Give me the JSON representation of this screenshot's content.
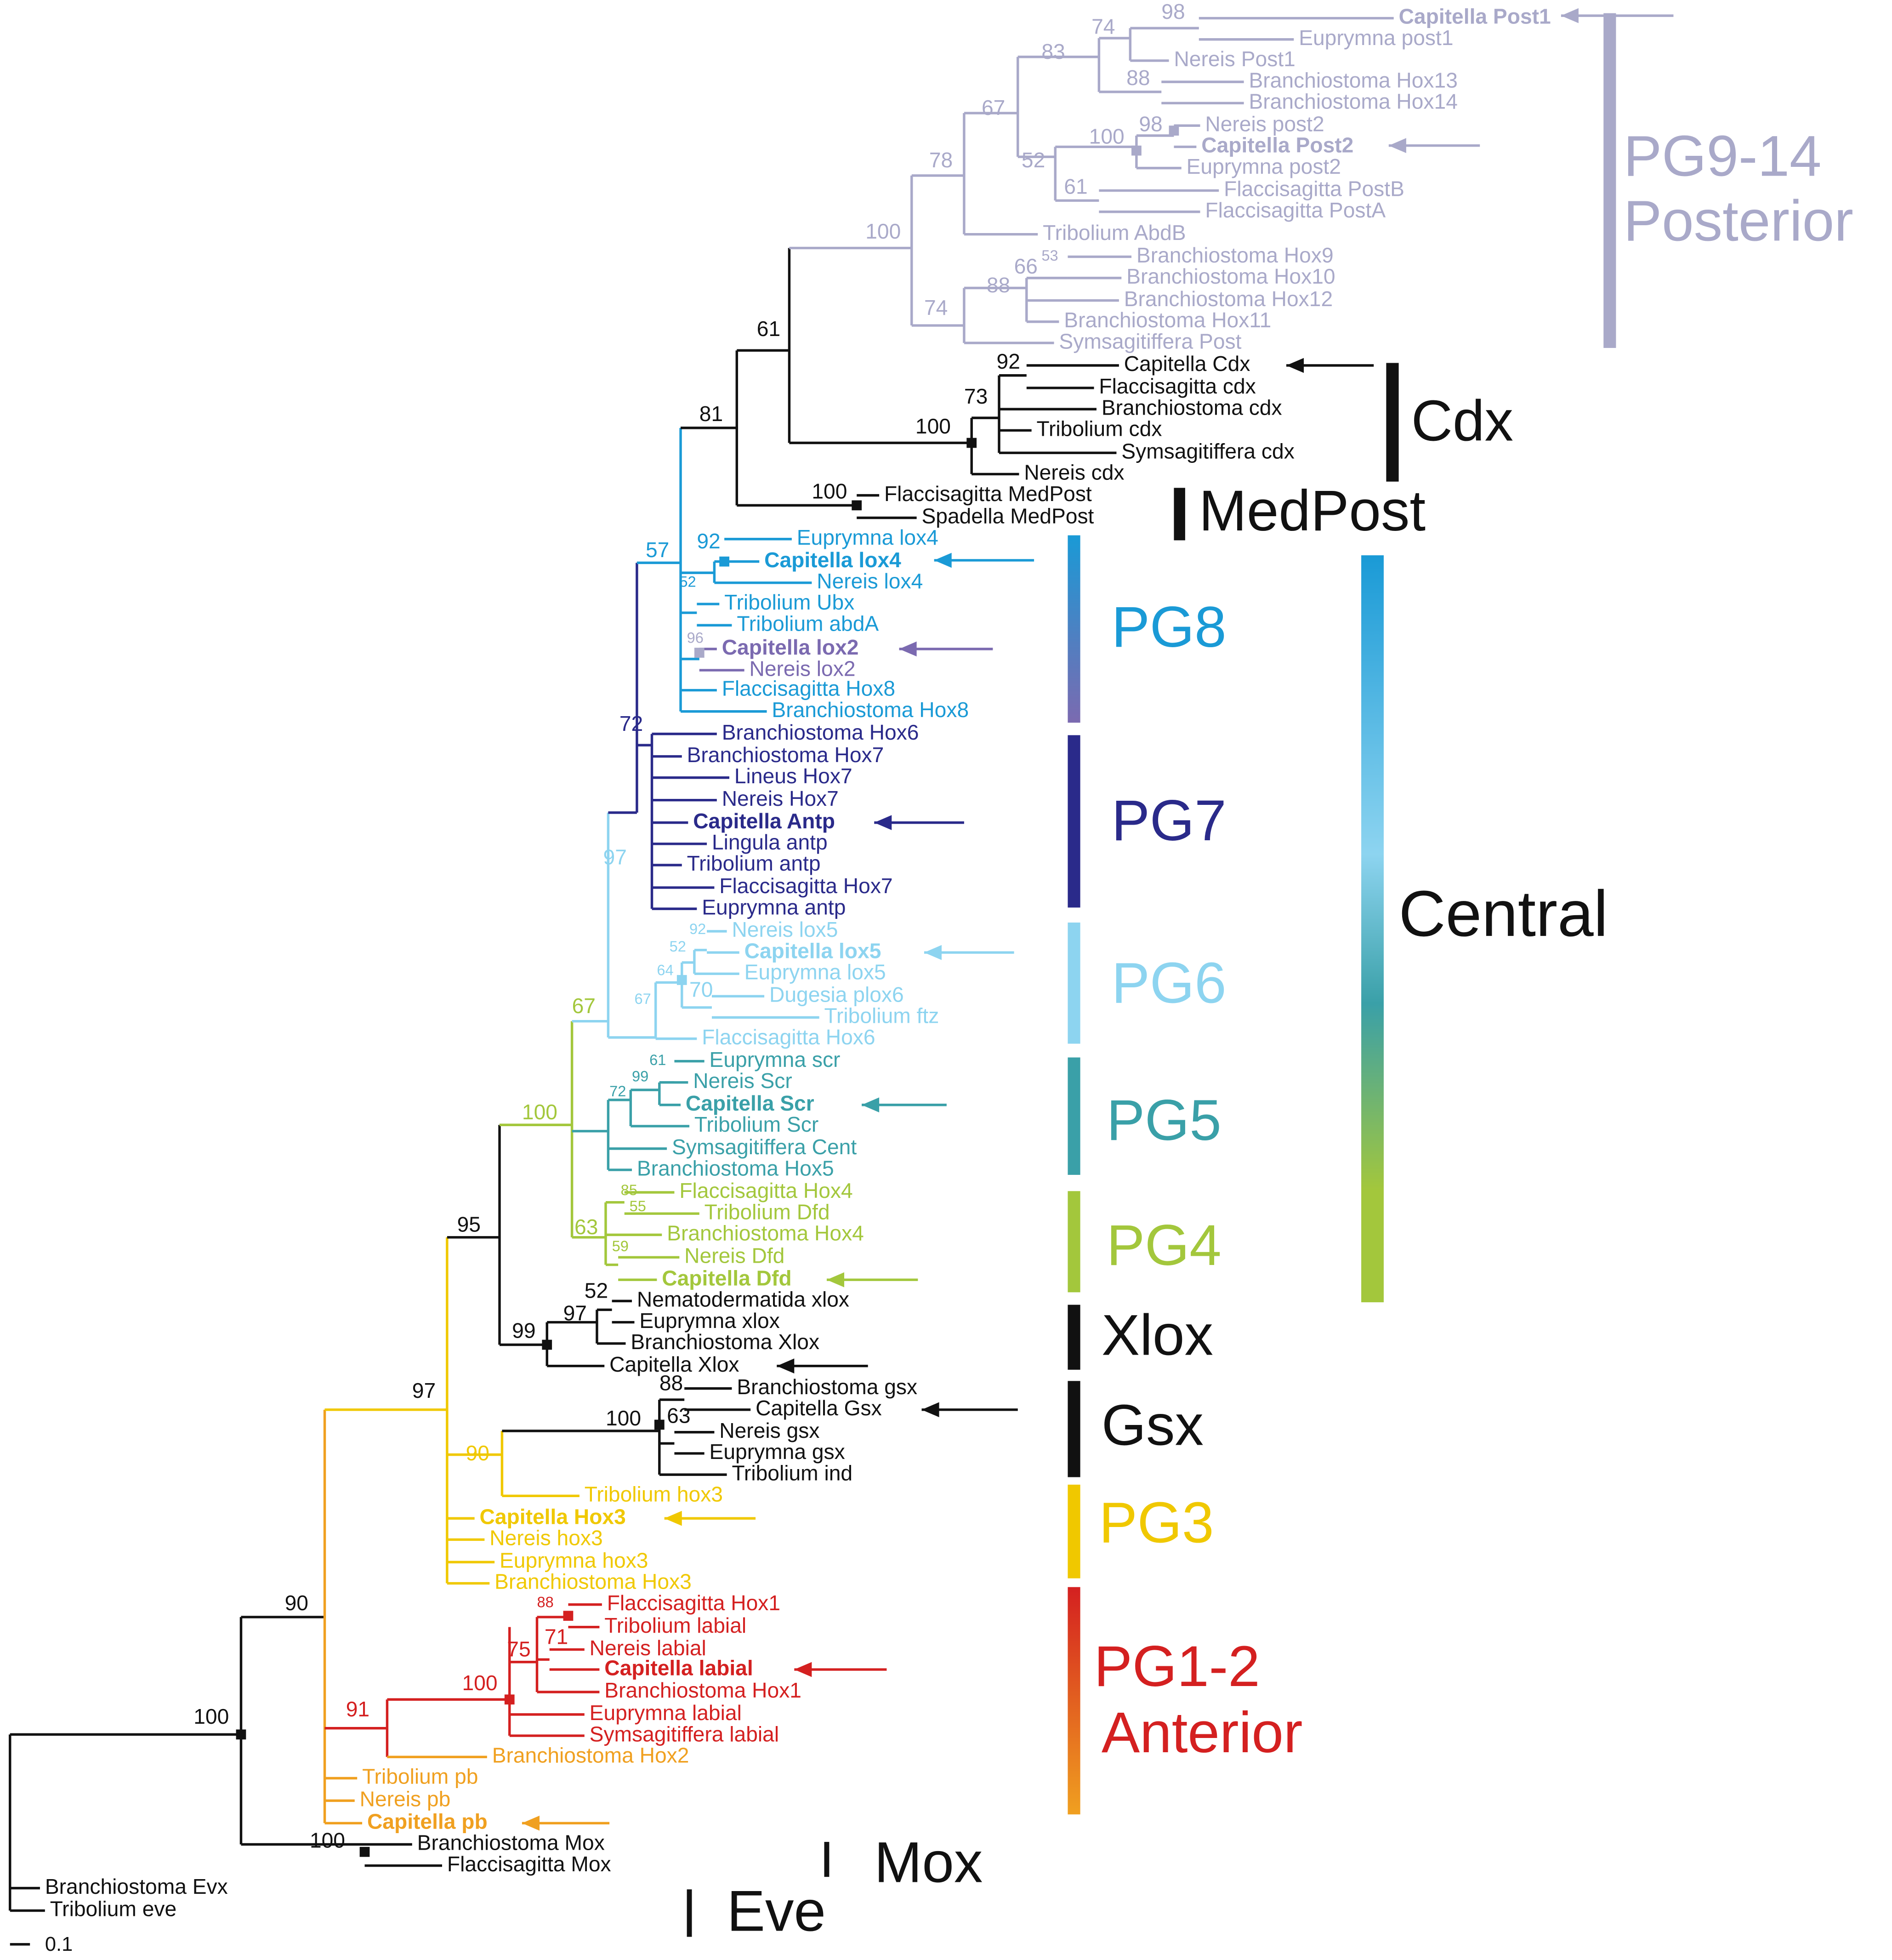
{
  "leaves": [
    {
      "label": "Capitella Post1",
      "color": "#a9a9c9",
      "bold": true
    },
    {
      "label": "Euprymna post1",
      "color": "#a9a9c9"
    },
    {
      "label": "Nereis Post1",
      "color": "#a9a9c9"
    },
    {
      "label": "Branchiostoma Hox13",
      "color": "#a9a9c9"
    },
    {
      "label": "Branchiostoma Hox14",
      "color": "#a9a9c9"
    },
    {
      "label": "Nereis post2",
      "color": "#a9a9c9"
    },
    {
      "label": "Capitella Post2",
      "color": "#a9a9c9",
      "bold": true
    },
    {
      "label": "Euprymna post2",
      "color": "#a9a9c9"
    },
    {
      "label": "Flaccisagitta PostB",
      "color": "#a9a9c9"
    },
    {
      "label": "Flaccisagitta PostA",
      "color": "#a9a9c9"
    },
    {
      "label": "Tribolium AbdB",
      "color": "#a9a9c9"
    },
    {
      "label": "Branchiostoma Hox9",
      "color": "#a9a9c9"
    },
    {
      "label": "Branchiostoma Hox10",
      "color": "#a9a9c9"
    },
    {
      "label": "Branchiostoma  Hox12",
      "color": "#a9a9c9"
    },
    {
      "label": "Branchiostoma  Hox11",
      "color": "#a9a9c9"
    },
    {
      "label": "Symsagitiffera Post",
      "color": "#a9a9c9"
    },
    {
      "label": "Capitella Cdx",
      "color": "#111111"
    },
    {
      "label": "Flaccisagitta cdx",
      "color": "#111111"
    },
    {
      "label": "Branchiostoma  cdx",
      "color": "#111111"
    },
    {
      "label": "Tribolium cdx",
      "color": "#111111"
    },
    {
      "label": "Symsagitiffera cdx",
      "color": "#111111"
    },
    {
      "label": "Nereis cdx",
      "color": "#111111"
    },
    {
      "label": "Flaccisagitta  MedPost",
      "color": "#111111"
    },
    {
      "label": "Spadella  MedPost",
      "color": "#111111"
    },
    {
      "label": "Euprymna lox4",
      "color": "#1a9ad6"
    },
    {
      "label": "Capitella lox4",
      "color": "#1a9ad6",
      "bold": true
    },
    {
      "label": "Nereis lox4",
      "color": "#1a9ad6"
    },
    {
      "label": "Tribolium Ubx",
      "color": "#1a9ad6"
    },
    {
      "label": "Tribolium abdA",
      "color": "#1a9ad6"
    },
    {
      "label": "Capitella lox2",
      "color": "#7b6ab0",
      "bold": true
    },
    {
      "label": "Nereis lox2",
      "color": "#7b6ab0"
    },
    {
      "label": "Flaccisagitta Hox8",
      "color": "#1a9ad6"
    },
    {
      "label": "Branchiostoma Hox8",
      "color": "#1a9ad6"
    },
    {
      "label": "Branchiostoma Hox6",
      "color": "#2a2a8a"
    },
    {
      "label": "Branchiostoma Hox7",
      "color": "#2a2a8a"
    },
    {
      "label": "Lineus Hox7",
      "color": "#2a2a8a"
    },
    {
      "label": "Nereis Hox7",
      "color": "#2a2a8a"
    },
    {
      "label": "Capitella Antp",
      "color": "#2a2a8a",
      "bold": true
    },
    {
      "label": "Lingula antp",
      "color": "#2a2a8a"
    },
    {
      "label": "Tribolium antp",
      "color": "#2a2a8a"
    },
    {
      "label": "Flaccisagitta Hox7",
      "color": "#2a2a8a"
    },
    {
      "label": "Euprymna antp",
      "color": "#2a2a8a"
    },
    {
      "label": "Nereis lox5",
      "color": "#8dd4f0"
    },
    {
      "label": "Capitella lox5",
      "color": "#8dd4f0",
      "bold": true
    },
    {
      "label": "Euprymna lox5",
      "color": "#8dd4f0"
    },
    {
      "label": "Dugesia plox6",
      "color": "#8dd4f0"
    },
    {
      "label": "Tribolium ftz",
      "color": "#8dd4f0"
    },
    {
      "label": "Flaccisagitta Hox6",
      "color": "#8dd4f0"
    },
    {
      "label": "Euprymna  scr",
      "color": "#3aa0a8"
    },
    {
      "label": "Nereis Scr",
      "color": "#3aa0a8"
    },
    {
      "label": "Capitella Scr",
      "color": "#3aa0a8",
      "bold": true
    },
    {
      "label": "Tribolium Scr",
      "color": "#3aa0a8"
    },
    {
      "label": "Symsagitiffera Cent",
      "color": "#3aa0a8"
    },
    {
      "label": "Branchiostoma Hox5",
      "color": "#3aa0a8"
    },
    {
      "label": "Flaccisagitta Hox4",
      "color": "#a3c73c"
    },
    {
      "label": "Tribolium Dfd",
      "color": "#a3c73c"
    },
    {
      "label": "Branchiostoma Hox4",
      "color": "#a3c73c"
    },
    {
      "label": "Nereis Dfd",
      "color": "#a3c73c"
    },
    {
      "label": "Capitella Dfd",
      "color": "#a3c73c",
      "bold": true
    },
    {
      "label": "Nematodermatida xlox",
      "color": "#111111"
    },
    {
      "label": "Euprymna  xlox",
      "color": "#111111"
    },
    {
      "label": "Branchiostoma Xlox",
      "color": "#111111"
    },
    {
      "label": "Capitella Xlox",
      "color": "#111111"
    },
    {
      "label": "Branchiostoma  gsx",
      "color": "#111111"
    },
    {
      "label": "Capitella Gsx",
      "color": "#111111"
    },
    {
      "label": "Nereis gsx",
      "color": "#111111"
    },
    {
      "label": "Euprymna gsx",
      "color": "#111111"
    },
    {
      "label": "Tribolium ind",
      "color": "#111111"
    },
    {
      "label": "Tribolium hox3",
      "color": "#f0c800"
    },
    {
      "label": "Capitella Hox3",
      "color": "#f0c800",
      "bold": true
    },
    {
      "label": "Nereis hox3",
      "color": "#f0c800"
    },
    {
      "label": "Euprymna hox3",
      "color": "#f0c800"
    },
    {
      "label": "Branchiostoma Hox3",
      "color": "#f0c800"
    },
    {
      "label": "Flaccisagitta Hox1",
      "color": "#d42020"
    },
    {
      "label": "Tribolium labial",
      "color": "#d42020"
    },
    {
      "label": "Nereis labial",
      "color": "#d42020"
    },
    {
      "label": "Capitella labial",
      "color": "#d42020",
      "bold": true
    },
    {
      "label": "Branchiostoma Hox1",
      "color": "#d42020"
    },
    {
      "label": "Euprymna  labial",
      "color": "#d42020"
    },
    {
      "label": "Symsagitiffera labial",
      "color": "#d42020"
    },
    {
      "label": "Branchiostoma Hox2",
      "color": "#f0a020"
    },
    {
      "label": "Tribolium pb",
      "color": "#f0a020"
    },
    {
      "label": "Nereis pb",
      "color": "#f0a020"
    },
    {
      "label": "Capitella pb",
      "color": "#f0a020",
      "bold": true
    },
    {
      "label": "Branchiostoma Mox",
      "color": "#111111"
    },
    {
      "label": "Flaccisagitta Mox",
      "color": "#111111"
    },
    {
      "label": "Branchiostoma Evx",
      "color": "#111111"
    },
    {
      "label": "Tribolium eve",
      "color": "#111111"
    }
  ],
  "supports": [
    98,
    74,
    83,
    88,
    67,
    100,
    98,
    52,
    78,
    61,
    100,
    53,
    66,
    88,
    74,
    61,
    92,
    73,
    100,
    81,
    100,
    57,
    92,
    52,
    96,
    72,
    97,
    92,
    52,
    64,
    70,
    67,
    67,
    61,
    99,
    72,
    100,
    85,
    55,
    63,
    59,
    95,
    52,
    97,
    99,
    88,
    63,
    100,
    97,
    90,
    88,
    71,
    75,
    100,
    91,
    90,
    100,
    100
  ],
  "groups": [
    "PG9-14",
    "Posterior",
    "Cdx",
    "MedPost",
    "PG8",
    "PG7",
    "PG6",
    "PG5",
    "PG4",
    "Xlox",
    "Gsx",
    "PG3",
    "PG1-2",
    "Anterior",
    "Mox",
    "Eve",
    "Central"
  ],
  "scale_bar": "0.1"
}
